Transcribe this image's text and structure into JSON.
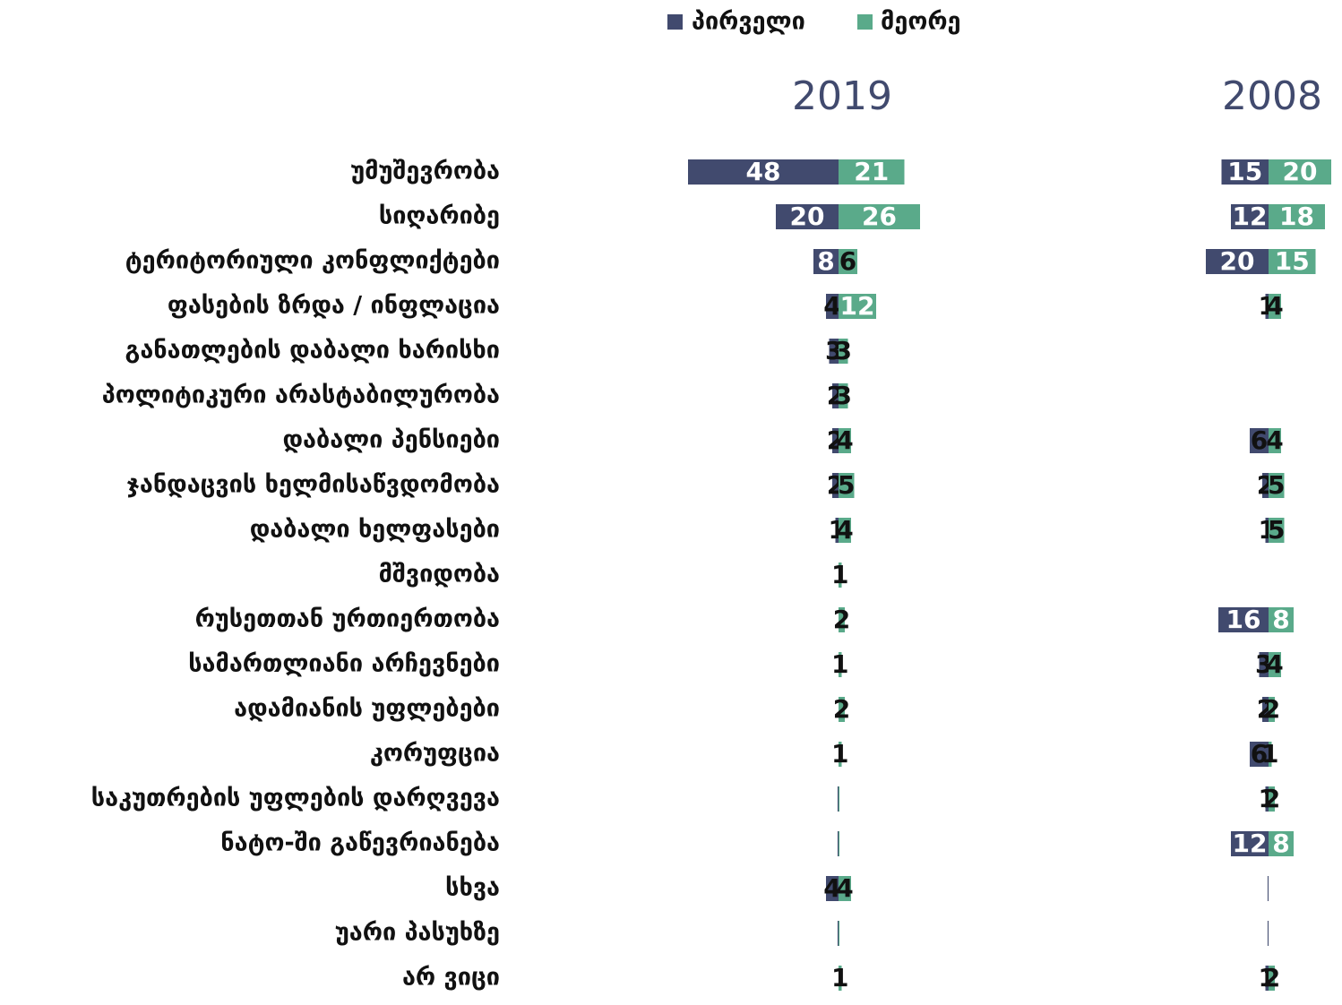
{
  "chart_data": {
    "type": "diverging_bar",
    "series": [
      {
        "name": "პირველი",
        "color": "#414a6e"
      },
      {
        "name": "მეორე",
        "color": "#5aaa8a"
      }
    ],
    "categories": [
      "უმუშევრობა",
      "სიღარიბე",
      "ტერიტორიული კონფლიქტები",
      "ფასების ზრდა / ინფლაცია",
      "განათლების დაბალი ხარისხი",
      "პოლიტიკური არასტაბილურობა",
      "დაბალი პენსიები",
      "ჯანდაცვის ხელმისაწვდომობა",
      "დაბალი ხელფასები",
      "მშვიდობა",
      "რუსეთთან ურთიერთობა",
      "სამართლიანი არჩევნები",
      "ადამიანის უფლებები",
      "კორუფცია",
      "საკუთრების უფლების დარღვევა",
      "ნატო-ში გაწევრიანება",
      "სხვა",
      "უარი პასუხზე",
      "არ ვიცი"
    ],
    "panels": [
      {
        "title": "2019",
        "values": [
          [
            48,
            20,
            8,
            4,
            3,
            2,
            2,
            2,
            1,
            0,
            0,
            0,
            0,
            0,
            0.3,
            0.3,
            4,
            0.3,
            0
          ],
          [
            21,
            26,
            6,
            12,
            3,
            3,
            4,
            5,
            4,
            1,
            2,
            1,
            2,
            1,
            0.3,
            0.3,
            4,
            0.3,
            1
          ]
        ]
      },
      {
        "title": "2008",
        "values": [
          [
            15,
            12,
            20,
            1,
            0,
            0,
            6,
            2,
            1,
            0,
            16,
            3,
            2,
            6,
            1,
            12,
            0.3,
            0.3,
            1
          ],
          [
            20,
            18,
            15,
            4,
            0,
            0,
            4,
            5,
            5,
            0,
            8,
            4,
            2,
            1,
            2,
            8,
            0,
            0,
            2
          ]
        ]
      }
    ]
  }
}
